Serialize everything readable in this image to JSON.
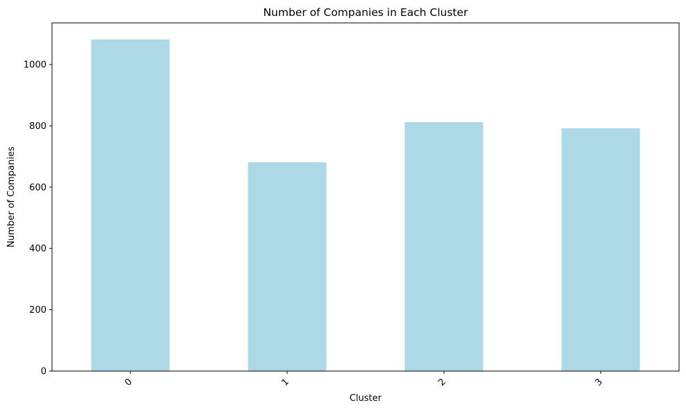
{
  "chart_data": {
    "type": "bar",
    "title": "Number of Companies in Each Cluster",
    "xlabel": "Cluster",
    "ylabel": "Number of Companies",
    "categories": [
      "0",
      "1",
      "2",
      "3"
    ],
    "values": [
      1082,
      681,
      812,
      792
    ],
    "ylim": [
      0,
      1136
    ],
    "yticks": [
      0,
      200,
      400,
      600,
      800,
      1000
    ],
    "bar_color": "#add8e6",
    "grid": false,
    "legend": "none",
    "xtick_rotation": "45"
  }
}
